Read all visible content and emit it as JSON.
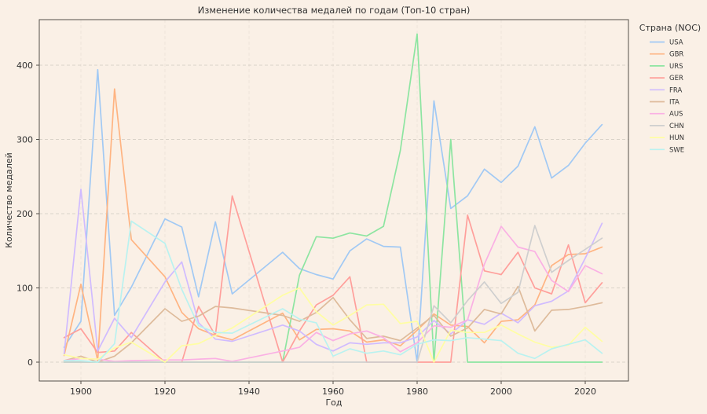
{
  "chart_data": {
    "type": "line",
    "title": "Изменение количества медалей по годам (Топ-10 стран)",
    "xlabel": "Год",
    "ylabel": "Количество медалей",
    "legend_title": "Страна (NOC)",
    "background_color": "#faf0e6",
    "grid": "dashed",
    "grid_color": "#b5b0a6",
    "x_ticks": [
      1900,
      1920,
      1940,
      1960,
      1980,
      2000,
      2020
    ],
    "y_ticks": [
      0,
      100,
      200,
      300,
      400
    ],
    "xlim": [
      1890,
      2030
    ],
    "ylim": [
      -25,
      461
    ],
    "legend_position": "upper-right-outside",
    "x": [
      1896,
      1900,
      1904,
      1908,
      1912,
      1920,
      1924,
      1928,
      1932,
      1936,
      1948,
      1952,
      1956,
      1960,
      1964,
      1968,
      1972,
      1976,
      1980,
      1984,
      1988,
      1992,
      1996,
      2000,
      2004,
      2008,
      2012,
      2016,
      2020,
      2024
    ],
    "series": [
      {
        "name": "USA",
        "color": "#a1c9f4",
        "values": [
          20,
          55,
          394,
          63,
          101,
          193,
          182,
          88,
          189,
          92,
          148,
          126,
          118,
          112,
          150,
          166,
          156,
          155,
          0,
          352,
          207,
          224,
          260,
          242,
          264,
          317,
          248,
          265,
          295,
          320
        ]
      },
      {
        "name": "GBR",
        "color": "#ffb482",
        "values": [
          9,
          105,
          2,
          368,
          165,
          115,
          67,
          45,
          36,
          30,
          66,
          30,
          44,
          45,
          42,
          27,
          30,
          22,
          43,
          65,
          50,
          48,
          26,
          55,
          57,
          77,
          130,
          145,
          146,
          155
        ]
      },
      {
        "name": "URS",
        "color": "#8de5a1",
        "values": [
          0,
          0,
          0,
          0,
          0,
          0,
          0,
          0,
          0,
          0,
          0,
          117,
          169,
          167,
          174,
          170,
          183,
          285,
          442,
          0,
          300,
          0,
          0,
          0,
          0,
          0,
          0,
          0,
          0,
          0
        ]
      },
      {
        "name": "GER",
        "color": "#ff9f9b",
        "values": [
          33,
          45,
          13,
          15,
          40,
          0,
          0,
          75,
          36,
          224,
          0,
          42,
          77,
          90,
          115,
          0,
          0,
          0,
          0,
          0,
          0,
          198,
          123,
          118,
          148,
          100,
          92,
          158,
          80,
          107
        ]
      },
      {
        "name": "FRA",
        "color": "#d0bbff",
        "values": [
          11,
          233,
          15,
          59,
          33,
          108,
          135,
          53,
          31,
          28,
          50,
          42,
          24,
          15,
          26,
          24,
          26,
          26,
          34,
          56,
          38,
          57,
          51,
          66,
          53,
          76,
          82,
          96,
          140,
          187
        ]
      },
      {
        "name": "ITA",
        "color": "#debb9b",
        "values": [
          2,
          8,
          0,
          8,
          26,
          72,
          55,
          62,
          75,
          73,
          63,
          55,
          67,
          87,
          57,
          32,
          35,
          29,
          46,
          63,
          35,
          46,
          71,
          65,
          102,
          42,
          70,
          71,
          75,
          80
        ]
      },
      {
        "name": "AUS",
        "color": "#fab0e4",
        "values": [
          2,
          5,
          4,
          1,
          2,
          3,
          3,
          4,
          5,
          1,
          15,
          20,
          40,
          29,
          38,
          42,
          33,
          14,
          26,
          49,
          47,
          57,
          132,
          183,
          155,
          149,
          110,
          95,
          130,
          119
        ]
      },
      {
        "name": "CHN",
        "color": "#cfcfcf",
        "values": [
          0,
          0,
          0,
          0,
          0,
          0,
          0,
          0,
          0,
          0,
          0,
          0,
          0,
          0,
          0,
          0,
          0,
          0,
          0,
          76,
          53,
          83,
          108,
          79,
          94,
          184,
          121,
          137,
          152,
          167
        ]
      },
      {
        "name": "HUN",
        "color": "#fffea3",
        "values": [
          10,
          5,
          4,
          19,
          27,
          0,
          22,
          25,
          36,
          46,
          90,
          100,
          68,
          50,
          63,
          77,
          78,
          52,
          55,
          0,
          43,
          40,
          40,
          50,
          38,
          27,
          20,
          23,
          47,
          28
        ]
      },
      {
        "name": "SWE",
        "color": "#b9f2f0",
        "values": [
          2,
          2,
          0,
          25,
          190,
          160,
          98,
          49,
          40,
          39,
          72,
          58,
          53,
          8,
          18,
          12,
          15,
          10,
          24,
          30,
          29,
          33,
          31,
          29,
          12,
          5,
          18,
          24,
          30,
          12
        ]
      }
    ]
  }
}
